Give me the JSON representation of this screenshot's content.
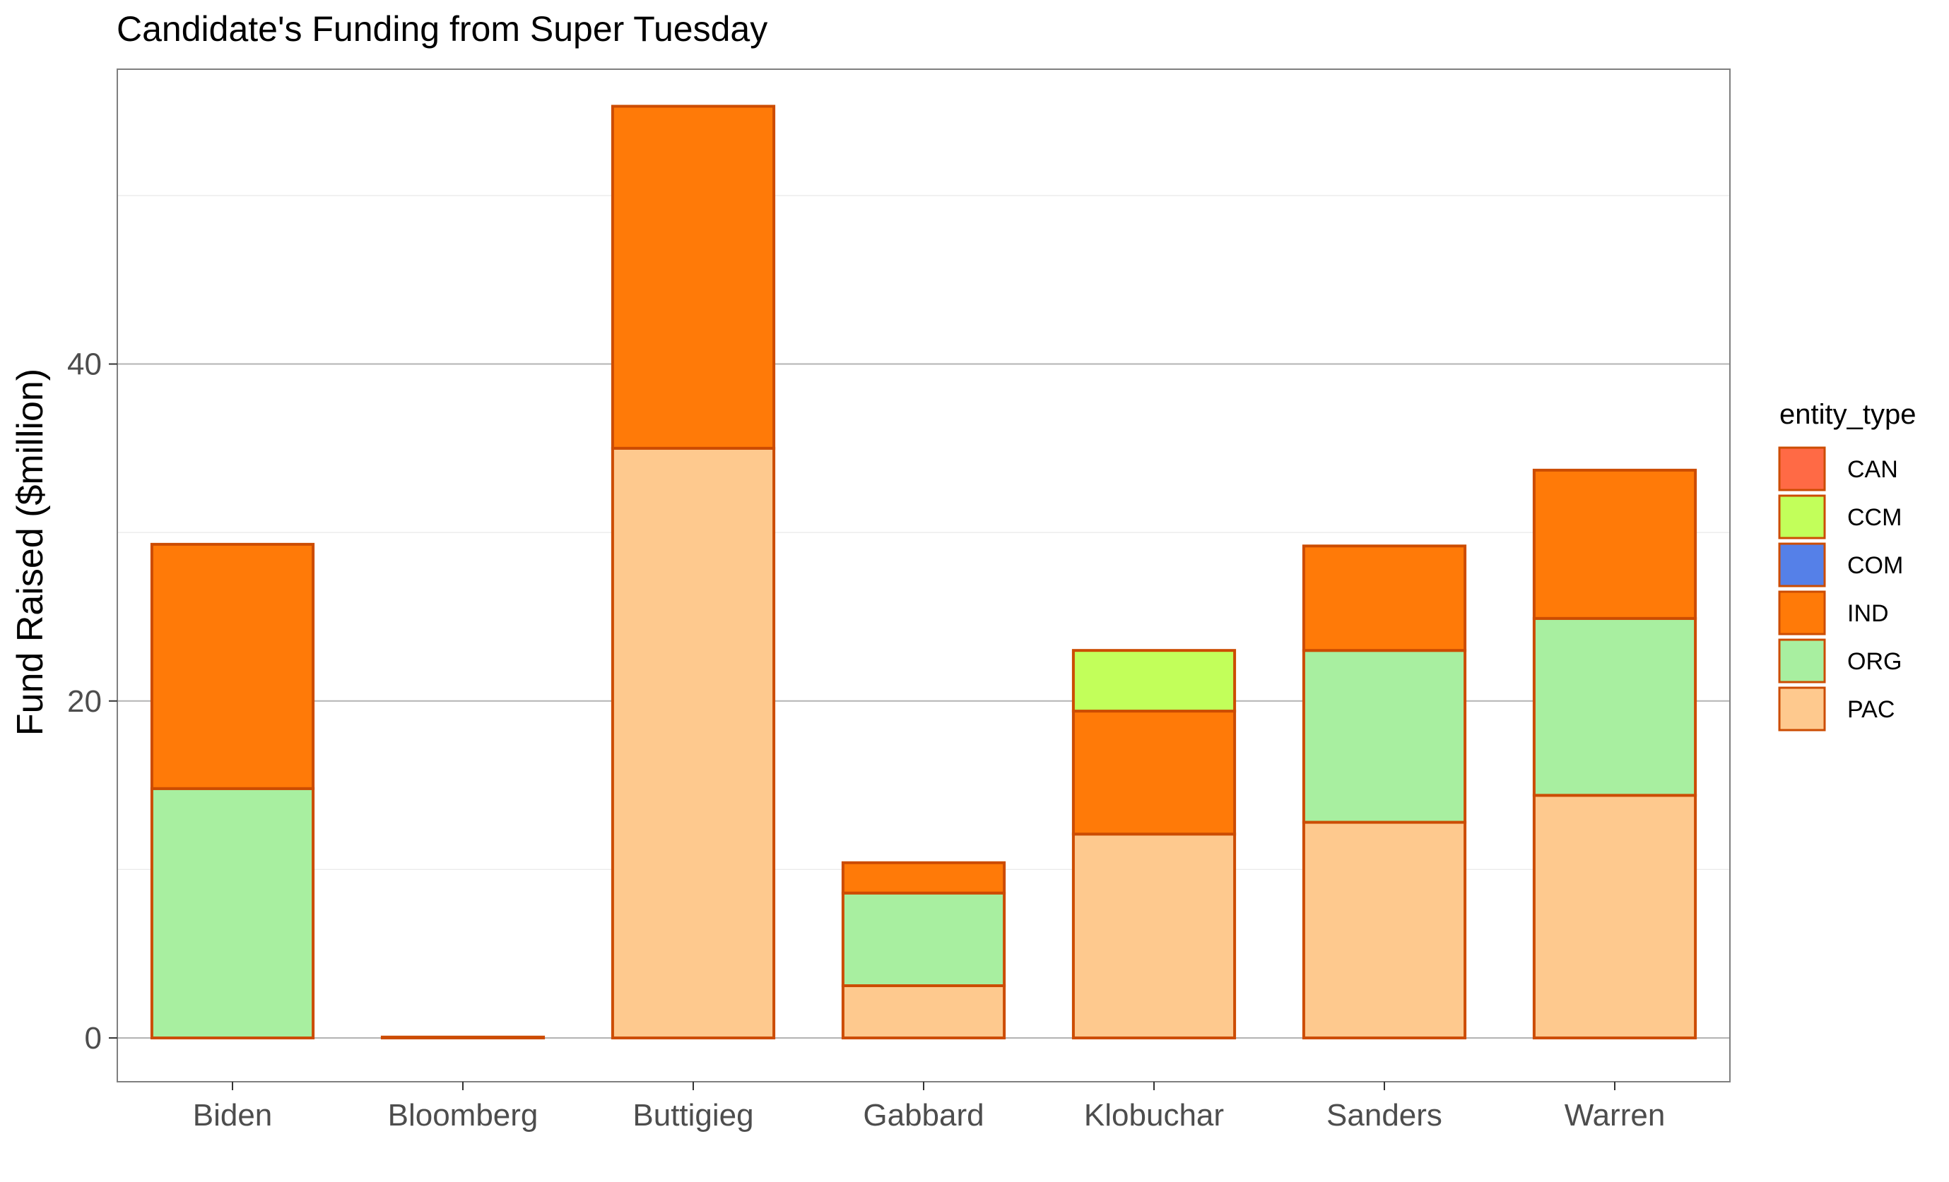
{
  "chart_data": {
    "type": "bar",
    "stacked": true,
    "title": "Candidate's Funding from Super Tuesday",
    "xlabel": "",
    "ylabel": "Fund Raised ($million)",
    "ylim": [
      -2.6,
      57.5
    ],
    "yticks": [
      0,
      20,
      40
    ],
    "grid": true,
    "legend_title": "entity_type",
    "legend_position": "right",
    "bar_outline_color": "#CC4C02",
    "categories": [
      "Biden",
      "Bloomberg",
      "Buttigieg",
      "Gabbard",
      "Klobuchar",
      "Sanders",
      "Warren"
    ],
    "series": [
      {
        "name": "CAN",
        "color": "#FF6A45",
        "values": [
          0,
          0,
          0,
          0,
          0,
          0,
          0
        ]
      },
      {
        "name": "CCM",
        "color": "#C2FF5A",
        "values": [
          0,
          0,
          0,
          0,
          3.6,
          0,
          0
        ]
      },
      {
        "name": "COM",
        "color": "#5580E8",
        "values": [
          0,
          0,
          0,
          0,
          0,
          0,
          0
        ]
      },
      {
        "name": "IND",
        "color": "#FF7A08",
        "values": [
          14.5,
          0.05,
          20.3,
          1.8,
          7.3,
          6.2,
          8.8
        ]
      },
      {
        "name": "ORG",
        "color": "#A8EFA0",
        "values": [
          14.8,
          0,
          0,
          5.5,
          0,
          10.2,
          10.5
        ]
      },
      {
        "name": "PAC",
        "color": "#FEC98E",
        "values": [
          0,
          0,
          35.0,
          3.1,
          12.1,
          12.8,
          14.4
        ]
      }
    ]
  }
}
